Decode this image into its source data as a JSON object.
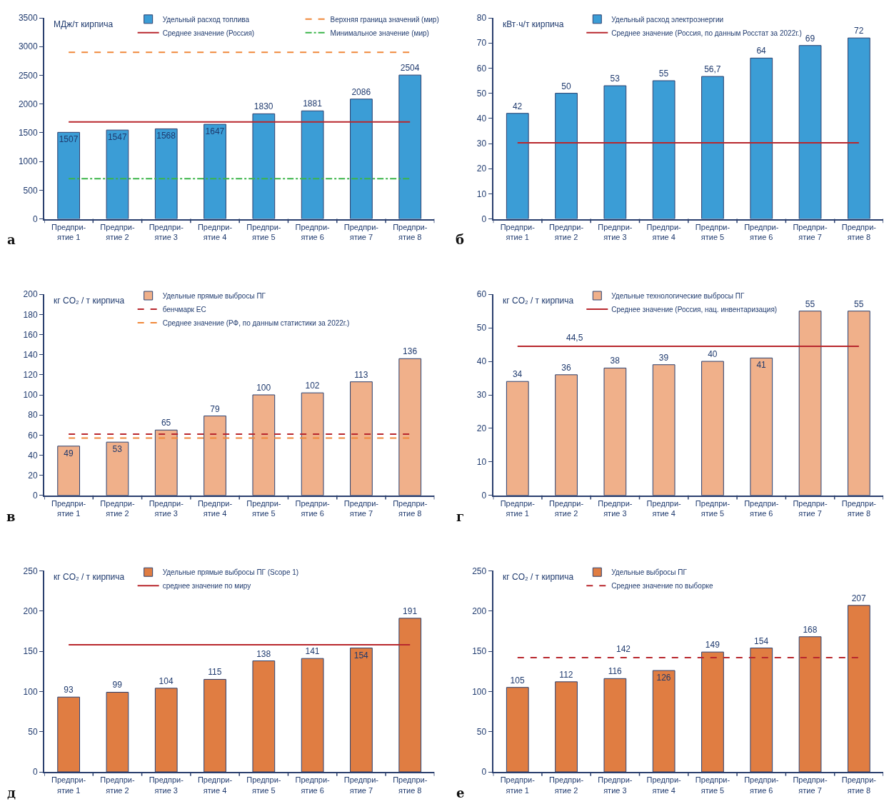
{
  "chart_data": [
    {
      "type": "bar",
      "ylabel": "МДж/т кирпича",
      "categories": [
        "Предпри-\nятие 1",
        "Предпри-\nятие 2",
        "Предпри-\nятие 3",
        "Предпри-\nятие 4",
        "Предпри-\nятие 5",
        "Предпри-\nятие 6",
        "Предпри-\nятие 7",
        "Предпри-\nятие 8"
      ],
      "series": [
        {
          "name": "Удельный расход топлива",
          "color": "#3b9dd6",
          "values": [
            1507,
            1547,
            1568,
            1647,
            1830,
            1881,
            2086,
            2504
          ]
        }
      ],
      "ref_lines": [
        {
          "axis": "y",
          "value": 2900,
          "label": "Верхняя граница значений (мир)",
          "color": "#f0883a",
          "line_style": "dashed"
        },
        {
          "axis": "y",
          "value": 1690,
          "label": "Среднее значение (Россия)",
          "color": "#b8272d",
          "line_style": "solid"
        },
        {
          "axis": "y",
          "value": 700,
          "label": "Минимальное значение (мир)",
          "color": "#3bb54a",
          "line_style": "dashdot"
        }
      ],
      "ylim": [
        0,
        3500
      ],
      "yticks": [
        0,
        500,
        1000,
        1500,
        2000,
        2500,
        3000,
        3500
      ],
      "data_labels": true,
      "legend": "top",
      "annotations": [
        "а"
      ]
    },
    {
      "type": "bar",
      "ylabel": "кВт·ч/т кирпича",
      "categories": [
        "Предпри-\nятие 1",
        "Предпри-\nятие 2",
        "Предпри-\nятие 3",
        "Предпри-\nятие 4",
        "Предпри-\nятие 5",
        "Предпри-\nятие 6",
        "Предпри-\nятие 7",
        "Предпри-\nятие 8"
      ],
      "series": [
        {
          "name": "Удельный расход электроэнергии",
          "color": "#3b9dd6",
          "values": [
            42,
            50,
            53,
            55,
            56.7,
            64,
            69,
            72
          ],
          "value_labels": [
            "42",
            "50",
            "53",
            "55",
            "56,7",
            "64",
            "69",
            "72"
          ]
        }
      ],
      "ref_lines": [
        {
          "axis": "y",
          "value": 30.3,
          "label": "Среднее значение (Россия, по данным Росстат за 2022г.)",
          "color": "#b8272d",
          "line_style": "solid"
        }
      ],
      "ylim": [
        0,
        80
      ],
      "yticks": [
        0,
        10,
        20,
        30,
        40,
        50,
        60,
        70,
        80
      ],
      "legend": "top",
      "annotations": [
        "б"
      ]
    },
    {
      "type": "bar",
      "ylabel": "кг CO₂ / т кирпича",
      "categories": [
        "Предпри-\nятие 1",
        "Предпри-\nятие 2",
        "Предпри-\nятие 3",
        "Предпри-\nятие 4",
        "Предпри-\nятие 5",
        "Предпри-\nятие 6",
        "Предпри-\nятие 7",
        "Предпри-\nятие 8"
      ],
      "series": [
        {
          "name": "Удельные прямые выбросы ПГ",
          "color": "#f0b08a",
          "values": [
            49,
            53,
            65,
            79,
            100,
            102,
            113,
            136
          ]
        }
      ],
      "ref_lines": [
        {
          "axis": "y",
          "value": 61,
          "label": "бенчмарк ЕС",
          "color": "#b8272d",
          "line_style": "dashed"
        },
        {
          "axis": "y",
          "value": 57,
          "label": "Среднее значение (РФ, по данным статистики за 2022г.)",
          "color": "#f0883a",
          "line_style": "dashed"
        }
      ],
      "ylim": [
        0,
        200
      ],
      "yticks": [
        0,
        20,
        40,
        60,
        80,
        100,
        120,
        140,
        160,
        180,
        200
      ],
      "data_labels": true,
      "legend": "top",
      "annotations": [
        "в"
      ]
    },
    {
      "type": "bar",
      "ylabel": "кг CO₂ / т кирпича",
      "categories": [
        "Предпри-\nятие 1",
        "Предпри-\nятие 2",
        "Предпри-\nятие 3",
        "Предпри-\nятие 4",
        "Предпри-\nятие 5",
        "Предпри-\nятие 6",
        "Предпри-\nятие 7",
        "Предпри-\nятие 8"
      ],
      "series": [
        {
          "name": "Удельные технологические выбросы ПГ",
          "color": "#f0b08a",
          "values": [
            34,
            36,
            38,
            39,
            40,
            41,
            55,
            55
          ]
        }
      ],
      "ref_lines": [
        {
          "axis": "y",
          "value": 44.5,
          "label": "Среднее значение (Россия, нац. инвентаризация)",
          "color": "#b8272d",
          "line_style": "solid"
        }
      ],
      "ylim": [
        0,
        60
      ],
      "yticks": [
        0,
        10,
        20,
        30,
        40,
        50,
        60
      ],
      "data_labels": true,
      "legend": "top",
      "annotations": [
        {
          "text": "44,5",
          "x": "Предпри-\nятие 2",
          "y": 44.5
        },
        "г"
      ]
    },
    {
      "type": "bar",
      "ylabel": "кг CO₂ / т кирпича",
      "categories": [
        "Предпри-\nятие 1",
        "Предпри-\nятие 2",
        "Предпри-\nятие 3",
        "Предпри-\nятие 4",
        "Предпри-\nятие 5",
        "Предпри-\nятие 6",
        "Предпри-\nятие 7",
        "Предпри-\nятие 8"
      ],
      "series": [
        {
          "name": "Удельные прямые выбросы ПГ (Scope 1)",
          "color": "#e07d42",
          "values": [
            93,
            99,
            104,
            115,
            138,
            141,
            154,
            191
          ]
        }
      ],
      "ref_lines": [
        {
          "axis": "y",
          "value": 158,
          "label": "среднее значение по миру",
          "color": "#b8272d",
          "line_style": "solid"
        }
      ],
      "ylim": [
        0,
        250
      ],
      "yticks": [
        0,
        50,
        100,
        150,
        200,
        250
      ],
      "data_labels": true,
      "legend": "top",
      "annotations": [
        "д"
      ]
    },
    {
      "type": "bar",
      "ylabel": "кг CO₂ / т кирпича",
      "categories": [
        "Предпри-\nятие 1",
        "Предпри-\nятие 2",
        "Предпри-\nятие 3",
        "Предпри-\nятие 4",
        "Предпри-\nятие 5",
        "Предпри-\nятие 6",
        "Предпри-\nятие 7",
        "Предпри-\nятие 8"
      ],
      "series": [
        {
          "name": "Удельные выбросы ПГ",
          "color": "#e07d42",
          "values": [
            105,
            112,
            116,
            126,
            149,
            154,
            168,
            207
          ]
        }
      ],
      "ref_lines": [
        {
          "axis": "y",
          "value": 142,
          "label": "Среднее значение по выборке",
          "color": "#b8272d",
          "line_style": "dashed"
        }
      ],
      "ylim": [
        0,
        250
      ],
      "yticks": [
        0,
        50,
        100,
        150,
        200,
        250
      ],
      "data_labels": true,
      "legend": "top",
      "annotations": [
        {
          "text": "142",
          "x": "Предпри-\nятие 3",
          "y": 142
        },
        "е"
      ]
    }
  ]
}
